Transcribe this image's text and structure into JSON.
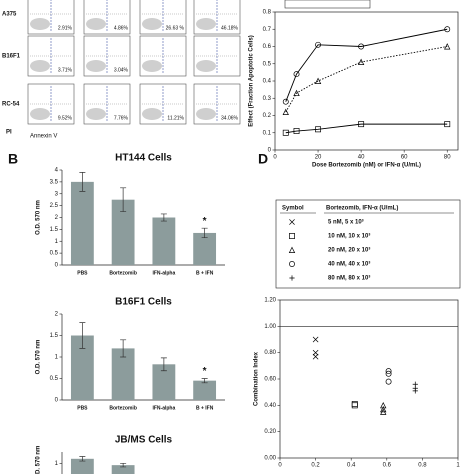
{
  "panel_labels": {
    "b": "B",
    "d": "D"
  },
  "flow": {
    "y_label": "PI",
    "x_label": "Annexin V",
    "rows": [
      {
        "label": "A375",
        "percents": [
          "2.91%",
          "4.86%",
          "26.63 %",
          "46.18%"
        ]
      },
      {
        "label": "B16F1",
        "percents": [
          "3.71%",
          "3.04%"
        ]
      },
      {
        "label": "RC-54",
        "percents": [
          "9.52%",
          "7.76%",
          "11.21%",
          "34.06%"
        ]
      }
    ]
  },
  "chart_data": [
    {
      "type": "line",
      "x_label": "Dose Bortezomib (nM) or IFN-α (U/mL)",
      "y_label": "Effect (Fraction Apoptotic Cells)",
      "x": [
        5,
        10,
        20,
        40,
        80
      ],
      "series": [
        {
          "color": "#000000",
          "marker": "circle",
          "dash": false,
          "values": [
            0.28,
            0.44,
            0.61,
            0.6,
            0.7
          ]
        },
        {
          "color": "#000000",
          "marker": "triangle",
          "dash": true,
          "values": [
            0.22,
            0.33,
            0.4,
            0.51,
            0.6
          ]
        },
        {
          "color": "#000000",
          "marker": "square",
          "dash": false,
          "values": [
            0.1,
            0.11,
            0.12,
            0.15,
            0.15
          ]
        }
      ],
      "xlim": [
        0,
        85
      ],
      "xticks": [
        0,
        20,
        40,
        60,
        80
      ],
      "ylim": [
        0,
        0.8
      ],
      "yticks": [
        0,
        0.1,
        0.2,
        0.3,
        0.4,
        0.5,
        0.6,
        0.7,
        0.8
      ]
    },
    {
      "type": "bar",
      "title": "HT144 Cells",
      "y_label": "O.D. 570 nm",
      "color": "#8c9c9c",
      "categories": [
        "PBS",
        "Bortezomib",
        "IFN-alpha",
        "B + IFN"
      ],
      "values": [
        3.5,
        2.75,
        2.0,
        1.35
      ],
      "errors": [
        0.4,
        0.5,
        0.15,
        0.2
      ],
      "annotation": "*",
      "ylim": [
        0,
        4
      ],
      "yticks": [
        0,
        0.5,
        1,
        1.5,
        2,
        2.5,
        3,
        3.5,
        4
      ]
    },
    {
      "type": "bar",
      "title": "B16F1 Cells",
      "y_label": "O.D. 570 nm",
      "color": "#8c9c9c",
      "categories": [
        "PBS",
        "Bortezomib",
        "IFN-alpha",
        "B + IFN"
      ],
      "values": [
        1.5,
        1.2,
        0.83,
        0.45
      ],
      "errors": [
        0.3,
        0.2,
        0.15,
        0.05
      ],
      "annotation": "*",
      "ylim": [
        0,
        2
      ],
      "yticks": [
        0,
        0.5,
        1,
        1.5,
        2
      ]
    },
    {
      "type": "bar",
      "title": "JB/MS Cells",
      "y_label": "O.D. 570 nm",
      "color": "#8c9c9c",
      "values": [
        1.2,
        0.92
      ],
      "errors": [
        0.1,
        0.08
      ],
      "ylim": [
        0,
        1.5
      ],
      "yticks": [
        1
      ]
    },
    {
      "type": "scatter",
      "y_label": "Combination Index",
      "legend_header": [
        "Symbol",
        "Bortezomib, IFN-α (U/mL)"
      ],
      "reference_line": 1,
      "series": [
        {
          "name": "5 nM, 5 x 10³",
          "marker": "cross",
          "color": "#000000",
          "x": [
            0.2,
            0.2,
            0.2
          ],
          "values": [
            0.9,
            0.8,
            0.77
          ]
        },
        {
          "name": "10 nM, 10 x 10³",
          "marker": "square",
          "color": "#000000",
          "x": [
            0.42,
            0.42
          ],
          "values": [
            0.41,
            0.4
          ]
        },
        {
          "name": "20 nM, 20 x 10³",
          "marker": "triangle",
          "color": "#000000",
          "x": [
            0.58,
            0.58,
            0.58
          ],
          "values": [
            0.4,
            0.37,
            0.35
          ]
        },
        {
          "name": "40 nM, 40 x 10³",
          "marker": "circle",
          "color": "#000000",
          "x": [
            0.61,
            0.61,
            0.61
          ],
          "values": [
            0.66,
            0.64,
            0.58
          ]
        },
        {
          "name": "80 nM, 80 x 10³",
          "marker": "plus",
          "color": "#000000",
          "x": [
            0.76,
            0.76,
            0.76
          ],
          "values": [
            0.56,
            0.53,
            0.51
          ]
        }
      ],
      "xlim": [
        0,
        1
      ],
      "xticks": [
        0,
        0.2,
        0.4,
        0.6,
        0.8,
        1
      ],
      "ylim": [
        0,
        1.2
      ],
      "yticks": [
        {
          "value": 0,
          "label": "0.00"
        },
        {
          "value": 0.2,
          "label": "0.20"
        },
        {
          "value": 0.4,
          "label": "0.40"
        },
        {
          "value": 0.6,
          "label": "0.60"
        },
        {
          "value": 0.8,
          "label": "0.80"
        },
        {
          "value": 1,
          "label": "1.00"
        },
        {
          "value": 1.2,
          "label": "1.20"
        }
      ]
    }
  ]
}
